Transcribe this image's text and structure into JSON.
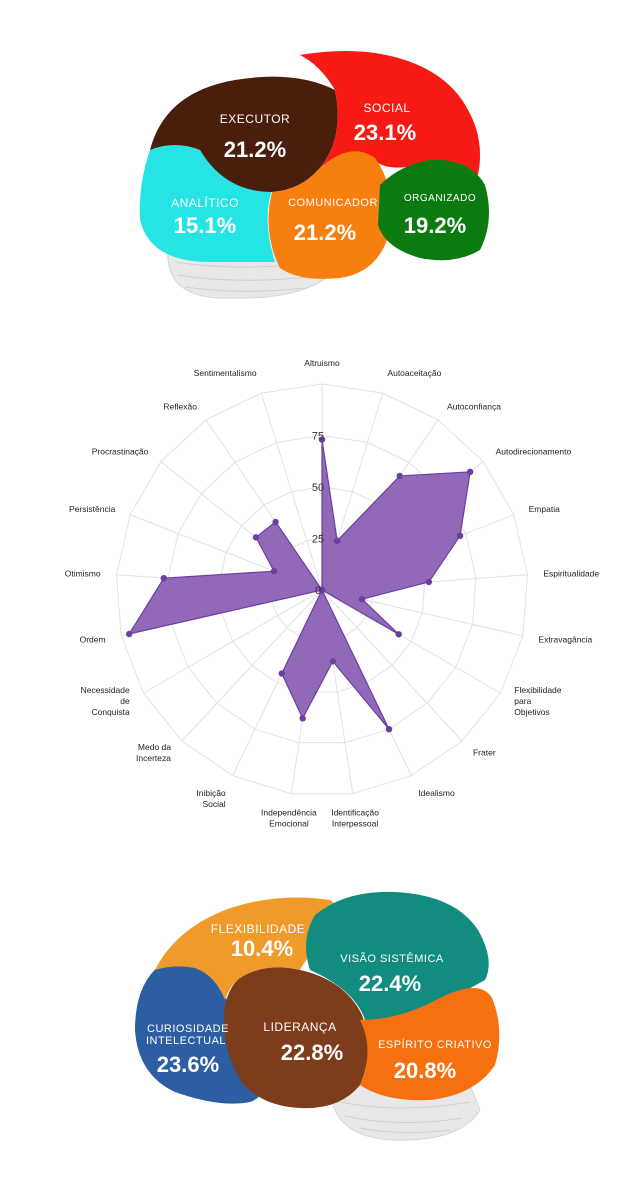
{
  "brain_top": {
    "regions": [
      {
        "name": "EXECUTOR",
        "value": "21.2%",
        "color": "#4a1e0c"
      },
      {
        "name": "SOCIAL",
        "value": "23.1%",
        "color": "#f71a14"
      },
      {
        "name": "ANALÍTICO",
        "value": "15.1%",
        "color": "#26e4e4"
      },
      {
        "name": "COMUNICADOR",
        "value": "21.2%",
        "color": "#f77f0f"
      },
      {
        "name": "ORGANIZADO",
        "value": "19.2%",
        "color": "#0b7a10"
      }
    ]
  },
  "chart_data": {
    "type": "radar",
    "categories": [
      "Altruismo",
      "Autoaceitação",
      "Autoconfiança",
      "Autodirecionamento",
      "Empatia",
      "Espiritualidade",
      "Extravagância",
      "Flexibilidade para Objetivos",
      "Frater",
      "Idealismo",
      "Identificação Interpessoal",
      "Independência Emocional",
      "Inibição Social",
      "Medo da Incerteza",
      "Necessidade de Conquista",
      "Ordem",
      "Otimismo",
      "Persistência",
      "Procrastinação",
      "Reflexão",
      "Sentimentalismo"
    ],
    "values": [
      73,
      25,
      67,
      92,
      72,
      52,
      20,
      43,
      0,
      75,
      35,
      63,
      45,
      0,
      0,
      96,
      77,
      25,
      41,
      40,
      0
    ],
    "radial_ticks": [
      "0",
      "25",
      "50",
      "75"
    ],
    "rmax": 100,
    "fill_color": "#8c60b4",
    "line_color": "#6b3fa0",
    "grid": true
  },
  "brain_bottom": {
    "regions": [
      {
        "name": "FLEXIBILIDADE",
        "value": "10.4%",
        "color": "#f09a2a"
      },
      {
        "name": "VISÃO SISTÊMICA",
        "value": "22.4%",
        "color": "#138c80"
      },
      {
        "name": "CURIOSIDADE INTELECTUAL",
        "name_line1": "CURIOSIDADE",
        "name_line2": "INTELECTUAL",
        "value": "23.6%",
        "color": "#2d5ea1"
      },
      {
        "name": "LIDERANÇA",
        "value": "22.8%",
        "color": "#7d3c1c"
      },
      {
        "name": "ESPÍRITO CRIATIVO",
        "value": "20.8%",
        "color": "#f77010"
      }
    ]
  }
}
